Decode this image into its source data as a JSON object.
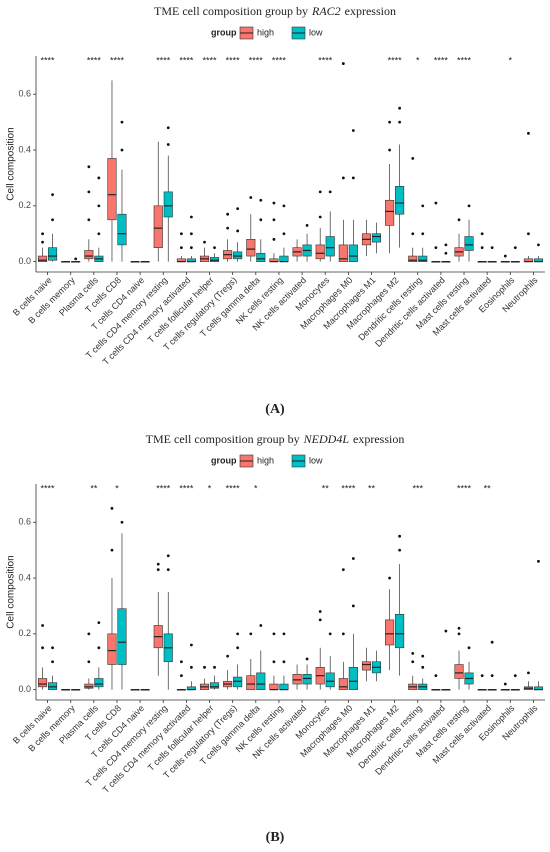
{
  "chart_data": [
    {
      "type": "box",
      "title": {
        "text": "TME cell composition group by",
        "gene": "RAC2",
        "suffix": "expression"
      },
      "panel_label": "(A)",
      "legend_title": "group",
      "ylabel": "Cell composition",
      "ylim": [
        -0.03,
        0.73
      ],
      "yticks": [
        {
          "value": 0,
          "label": "0.0"
        },
        0.2,
        0.4,
        0.6
      ],
      "categories": [
        "B cells naive",
        "B cells memory",
        "Plasma cells",
        "T cells CD8",
        "T cells CD4 naive",
        "T cells CD4 memory resting",
        "T cells CD4 memory activated",
        "T cells follicular helper",
        "T cells regulatory (Tregs)",
        "T cells gamma delta",
        "NK cells resting",
        "NK cells activated",
        "Monocytes",
        "Macrophages M0",
        "Macrophages M1",
        "Macrophages M2",
        "Dendritic cells resting",
        "Dendritic cells activated",
        "Mast cells resting",
        "Mast cells activated",
        "Eosinophils",
        "Neutrophils"
      ],
      "significance": [
        "****",
        null,
        "****",
        "****",
        null,
        "****",
        "****",
        "****",
        "****",
        "****",
        "****",
        null,
        "****",
        null,
        null,
        "****",
        "*",
        "****",
        "****",
        null,
        "*",
        null
      ],
      "series": [
        {
          "name": "high",
          "color": "#F8766D",
          "boxes": [
            [
              0,
              0,
              0.005,
              0.02,
              0.05
            ],
            [
              0,
              0,
              0,
              0,
              0
            ],
            [
              0,
              0.01,
              0.02,
              0.04,
              0.08
            ],
            [
              0,
              0.15,
              0.24,
              0.37,
              0.65
            ],
            [
              0,
              0,
              0,
              0,
              0
            ],
            [
              0,
              0.05,
              0.12,
              0.2,
              0.43
            ],
            [
              0,
              0,
              0,
              0.01,
              0.02
            ],
            [
              0,
              0,
              0.01,
              0.02,
              0.05
            ],
            [
              0,
              0.01,
              0.025,
              0.04,
              0.08
            ],
            [
              0,
              0.02,
              0.045,
              0.08,
              0.17
            ],
            [
              0,
              0,
              0,
              0.01,
              0.03
            ],
            [
              0,
              0.02,
              0.035,
              0.05,
              0.08
            ],
            [
              0,
              0.01,
              0.03,
              0.06,
              0.12
            ],
            [
              0,
              0,
              0.01,
              0.06,
              0.15
            ],
            [
              0.02,
              0.06,
              0.08,
              0.1,
              0.15
            ],
            [
              0.03,
              0.13,
              0.18,
              0.22,
              0.35
            ],
            [
              0,
              0,
              0.005,
              0.02,
              0.05
            ],
            [
              0,
              0,
              0,
              0,
              0
            ],
            [
              0,
              0.02,
              0.035,
              0.05,
              0.1
            ],
            [
              0,
              0,
              0,
              0,
              0
            ],
            [
              0,
              0,
              0,
              0,
              0
            ],
            [
              0,
              0,
              0,
              0.01,
              0.02
            ]
          ],
          "outliers": [
            [
              0.07,
              0.1
            ],
            [],
            [
              0.15,
              0.25,
              0.34
            ],
            [],
            [],
            [],
            [
              0.05,
              0.1
            ],
            [
              0.07
            ],
            [
              0.12,
              0.17
            ],
            [
              0.23
            ],
            [
              0.08,
              0.15,
              0.21
            ],
            [],
            [
              0.16,
              0.25
            ],
            [
              0.3,
              0.71
            ],
            [],
            [
              0.4,
              0.5
            ],
            [
              0.1,
              0.37
            ],
            [
              0.05,
              0.21
            ],
            [
              0.15
            ],
            [
              0.05,
              0.1
            ],
            [
              0.02
            ],
            [
              0.1,
              0.46
            ]
          ]
        },
        {
          "name": "low",
          "color": "#00BFC4",
          "boxes": [
            [
              0,
              0.005,
              0.02,
              0.05,
              0.1
            ],
            [
              0,
              0,
              0,
              0,
              0
            ],
            [
              0,
              0,
              0.01,
              0.02,
              0.05
            ],
            [
              0,
              0.06,
              0.1,
              0.17,
              0.33
            ],
            [
              0,
              0,
              0,
              0,
              0
            ],
            [
              0,
              0.16,
              0.2,
              0.25,
              0.38
            ],
            [
              0,
              0,
              0,
              0.01,
              0.02
            ],
            [
              0,
              0,
              0.005,
              0.015,
              0.03
            ],
            [
              0,
              0.01,
              0.02,
              0.035,
              0.07
            ],
            [
              0,
              0,
              0.01,
              0.03,
              0.08
            ],
            [
              0,
              0,
              0,
              0.02,
              0.05
            ],
            [
              0,
              0.02,
              0.04,
              0.06,
              0.1
            ],
            [
              0,
              0.02,
              0.05,
              0.09,
              0.18
            ],
            [
              0,
              0,
              0.02,
              0.06,
              0.15
            ],
            [
              0.03,
              0.07,
              0.09,
              0.1,
              0.14
            ],
            [
              0.05,
              0.17,
              0.21,
              0.27,
              0.42
            ],
            [
              0,
              0,
              0.005,
              0.02,
              0.05
            ],
            [
              0,
              0,
              0,
              0,
              0
            ],
            [
              0,
              0.04,
              0.06,
              0.09,
              0.15
            ],
            [
              0,
              0,
              0,
              0,
              0
            ],
            [
              0,
              0,
              0,
              0,
              0
            ],
            [
              0,
              0,
              0,
              0.01,
              0.02
            ]
          ],
          "outliers": [
            [
              0.15,
              0.24
            ],
            [
              0.01
            ],
            [
              0.1,
              0.2,
              0.3
            ],
            [
              0.4,
              0.5
            ],
            [],
            [
              0.42,
              0.48
            ],
            [
              0.05,
              0.1,
              0.16
            ],
            [
              0.05
            ],
            [
              0.11,
              0.19
            ],
            [
              0.15,
              0.22
            ],
            [
              0.1,
              0.2
            ],
            [
              0.13
            ],
            [
              0.25
            ],
            [
              0.3,
              0.47
            ],
            [],
            [
              0.5,
              0.55
            ],
            [
              0.1,
              0.2
            ],
            [
              0.03,
              0.06
            ],
            [
              0.2
            ],
            [
              0.05
            ],
            [
              0.05
            ],
            [
              0.06
            ]
          ]
        }
      ]
    },
    {
      "type": "box",
      "title": {
        "text": "TME cell composition group by",
        "gene": "NEDD4L",
        "suffix": "expression"
      },
      "panel_label": "(B)",
      "legend_title": "group",
      "ylabel": "Cell composition",
      "ylim": [
        -0.03,
        0.73
      ],
      "yticks": [
        {
          "value": 0,
          "label": "0.0"
        },
        0.2,
        0.4,
        0.6
      ],
      "categories": [
        "B cells naive",
        "B cells memory",
        "Plasma cells",
        "T cells CD8",
        "T cells CD4 naive",
        "T cells CD4 memory resting",
        "T cells CD4 memory activated",
        "T cells follicular helper",
        "T cells regulatory (Tregs)",
        "T cells gamma delta",
        "NK cells resting",
        "NK cells activated",
        "Monocytes",
        "Macrophages M0",
        "Macrophages M1",
        "Macrophages M2",
        "Dendritic cells resting",
        "Dendritic cells activated",
        "Mast cells resting",
        "Mast cells activated",
        "Eosinophils",
        "Neutrophils"
      ],
      "significance": [
        "****",
        null,
        "**",
        "*",
        null,
        "****",
        "****",
        "*",
        "****",
        "*",
        null,
        null,
        "**",
        "****",
        "**",
        null,
        "***",
        null,
        "****",
        "**",
        null,
        null
      ],
      "series": [
        {
          "name": "high",
          "color": "#F8766D",
          "boxes": [
            [
              0,
              0.01,
              0.02,
              0.04,
              0.08
            ],
            [
              0,
              0,
              0,
              0,
              0
            ],
            [
              0,
              0.005,
              0.01,
              0.02,
              0.04
            ],
            [
              0,
              0.09,
              0.14,
              0.2,
              0.4
            ],
            [
              0,
              0,
              0,
              0,
              0
            ],
            [
              0.05,
              0.15,
              0.19,
              0.23,
              0.35
            ],
            [
              0,
              0,
              0,
              0,
              0
            ],
            [
              0,
              0,
              0.01,
              0.02,
              0.04
            ],
            [
              0,
              0.01,
              0.02,
              0.03,
              0.07
            ],
            [
              0,
              0,
              0.02,
              0.05,
              0.11
            ],
            [
              0,
              0,
              0,
              0.02,
              0.05
            ],
            [
              0,
              0.02,
              0.035,
              0.055,
              0.09
            ],
            [
              0,
              0.02,
              0.05,
              0.08,
              0.15
            ],
            [
              0,
              0,
              0.01,
              0.04,
              0.1
            ],
            [
              0.03,
              0.07,
              0.09,
              0.1,
              0.15
            ],
            [
              0.07,
              0.16,
              0.2,
              0.25,
              0.36
            ],
            [
              0,
              0,
              0.01,
              0.02,
              0.05
            ],
            [
              0,
              0,
              0,
              0,
              0
            ],
            [
              0,
              0.04,
              0.06,
              0.09,
              0.14
            ],
            [
              0,
              0,
              0,
              0,
              0
            ],
            [
              0,
              0,
              0,
              0,
              0
            ],
            [
              0,
              0,
              0.005,
              0.01,
              0.03
            ]
          ],
          "outliers": [
            [
              0.15,
              0.23
            ],
            [],
            [
              0.1,
              0.2
            ],
            [
              0.5,
              0.65
            ],
            [],
            [
              0.43,
              0.45
            ],
            [
              0.05,
              0.1
            ],
            [
              0.08
            ],
            [
              0.12
            ],
            [
              0.2
            ],
            [
              0.1,
              0.2
            ],
            [],
            [
              0.25,
              0.28
            ],
            [
              0.2,
              0.43
            ],
            [],
            [
              0.4
            ],
            [
              0.1,
              0.13
            ],
            [
              0.05
            ],
            [
              0.2,
              0.22
            ],
            [
              0.05
            ],
            [
              0.02
            ],
            [
              0.06
            ]
          ]
        },
        {
          "name": "low",
          "color": "#00BFC4",
          "boxes": [
            [
              0,
              0,
              0.01,
              0.025,
              0.05
            ],
            [
              0,
              0,
              0,
              0,
              0
            ],
            [
              0,
              0.01,
              0.02,
              0.04,
              0.08
            ],
            [
              0,
              0.09,
              0.17,
              0.29,
              0.56
            ],
            [
              0,
              0,
              0,
              0,
              0
            ],
            [
              0,
              0.1,
              0.15,
              0.2,
              0.35
            ],
            [
              0,
              0,
              0,
              0.01,
              0.03
            ],
            [
              0,
              0.005,
              0.01,
              0.025,
              0.05
            ],
            [
              0,
              0.01,
              0.03,
              0.045,
              0.09
            ],
            [
              0,
              0,
              0.02,
              0.06,
              0.14
            ],
            [
              0,
              0,
              0,
              0.02,
              0.05
            ],
            [
              0,
              0.02,
              0.04,
              0.055,
              0.09
            ],
            [
              0,
              0.01,
              0.03,
              0.06,
              0.12
            ],
            [
              0,
              0,
              0.03,
              0.08,
              0.2
            ],
            [
              0.03,
              0.06,
              0.08,
              0.1,
              0.14
            ],
            [
              0.05,
              0.15,
              0.2,
              0.27,
              0.45
            ],
            [
              0,
              0,
              0.01,
              0.02,
              0.04
            ],
            [
              0,
              0,
              0,
              0,
              0
            ],
            [
              0,
              0.02,
              0.04,
              0.06,
              0.1
            ],
            [
              0,
              0,
              0,
              0,
              0
            ],
            [
              0,
              0,
              0,
              0,
              0
            ],
            [
              0,
              0,
              0,
              0.01,
              0.03
            ]
          ],
          "outliers": [
            [
              0.1,
              0.15
            ],
            [],
            [
              0.15,
              0.24
            ],
            [
              0.6
            ],
            [],
            [
              0.43,
              0.48
            ],
            [
              0.08,
              0.16
            ],
            [
              0.08
            ],
            [
              0.15,
              0.2
            ],
            [
              0.23
            ],
            [
              0.1,
              0.2
            ],
            [
              0.11
            ],
            [
              0.2
            ],
            [
              0.3,
              0.47
            ],
            [],
            [
              0.5,
              0.55
            ],
            [
              0.08,
              0.12
            ],
            [
              0.21
            ],
            [
              0.15
            ],
            [
              0.05,
              0.17
            ],
            [
              0.05
            ],
            [
              0.46
            ]
          ]
        }
      ]
    }
  ]
}
